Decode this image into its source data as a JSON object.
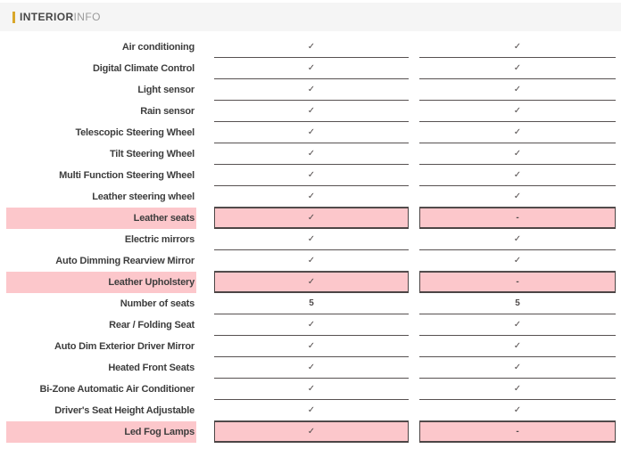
{
  "header": {
    "title": "INTERIOR",
    "subtitle": "INFO"
  },
  "table": {
    "column_roles": [
      "feature-name",
      "vehicle-1-value",
      "vehicle-2-value"
    ],
    "rows": [
      {
        "label": "Air conditioning",
        "values": [
          "✓",
          "✓"
        ],
        "highlight": false
      },
      {
        "label": "Digital Climate Control",
        "values": [
          "✓",
          "✓"
        ],
        "highlight": false
      },
      {
        "label": "Light sensor",
        "values": [
          "✓",
          "✓"
        ],
        "highlight": false
      },
      {
        "label": "Rain sensor",
        "values": [
          "✓",
          "✓"
        ],
        "highlight": false
      },
      {
        "label": "Telescopic Steering Wheel",
        "values": [
          "✓",
          "✓"
        ],
        "highlight": false
      },
      {
        "label": "Tilt Steering Wheel",
        "values": [
          "✓",
          "✓"
        ],
        "highlight": false
      },
      {
        "label": "Multi Function Steering Wheel",
        "values": [
          "✓",
          "✓"
        ],
        "highlight": false
      },
      {
        "label": "Leather steering wheel",
        "values": [
          "✓",
          "✓"
        ],
        "highlight": false
      },
      {
        "label": "Leather seats",
        "values": [
          "✓",
          "-"
        ],
        "highlight": true
      },
      {
        "label": "Electric mirrors",
        "values": [
          "✓",
          "✓"
        ],
        "highlight": false
      },
      {
        "label": "Auto Dimming Rearview Mirror",
        "values": [
          "✓",
          "✓"
        ],
        "highlight": false
      },
      {
        "label": "Leather Upholstery",
        "values": [
          "✓",
          "-"
        ],
        "highlight": true
      },
      {
        "label": "Number of seats",
        "values": [
          "5",
          "5"
        ],
        "highlight": false
      },
      {
        "label": "Rear / Folding Seat",
        "values": [
          "✓",
          "✓"
        ],
        "highlight": false
      },
      {
        "label": "Auto Dim Exterior Driver Mirror",
        "values": [
          "✓",
          "✓"
        ],
        "highlight": false
      },
      {
        "label": "Heated Front Seats",
        "values": [
          "✓",
          "✓"
        ],
        "highlight": false
      },
      {
        "label": "Bi-Zone Automatic Air Conditioner",
        "values": [
          "✓",
          "✓"
        ],
        "highlight": false
      },
      {
        "label": "Driver's Seat Height Adjustable",
        "values": [
          "✓",
          "✓"
        ],
        "highlight": false
      },
      {
        "label": "Led Fog Lamps",
        "values": [
          "✓",
          "-"
        ],
        "highlight": true
      }
    ]
  },
  "colors": {
    "accent": "#d9a72a",
    "highlight": "#fcc7cb",
    "cell_border": "#4c4545",
    "row_line": "#575151",
    "header_bg": "#f5f5f5"
  }
}
